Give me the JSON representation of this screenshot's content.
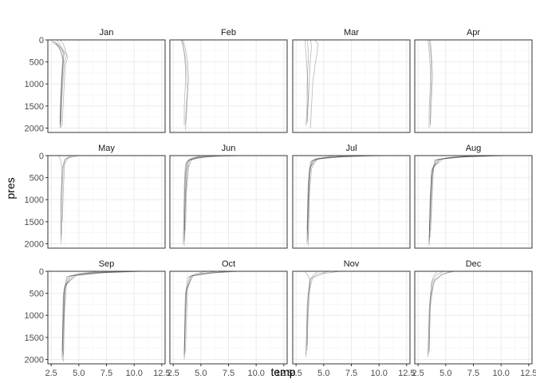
{
  "chart_data": {
    "type": "line",
    "facet": "month",
    "xlabel": "temp",
    "ylabel": "pres",
    "xlim": [
      2.2,
      12.8
    ],
    "ylim": [
      0,
      2100
    ],
    "x_ticks": [
      "2.5",
      "5.0",
      "7.5",
      "10.0",
      "12.5"
    ],
    "y_ticks": [
      "0",
      "500",
      "1000",
      "1500",
      "2000"
    ],
    "y_reversed": true,
    "grid": true,
    "line_color": "#333333",
    "panels": [
      {
        "label": "Jan",
        "profiles": [
          {
            "temp": [
              2.6,
              3.0,
              3.3,
              3.5,
              3.6,
              3.5,
              3.4,
              3.3,
              3.3
            ],
            "pres": [
              50,
              120,
              220,
              320,
              450,
              700,
              1100,
              1600,
              1950
            ]
          },
          {
            "temp": [
              2.7,
              3.1,
              3.5,
              3.9,
              3.7,
              3.6,
              3.5,
              3.4,
              3.4
            ],
            "pres": [
              30,
              100,
              200,
              350,
              500,
              800,
              1200,
              1700,
              2000
            ]
          },
          {
            "temp": [
              3.3,
              3.6,
              3.8,
              4.0,
              3.8,
              3.7,
              3.6,
              3.5
            ],
            "pres": [
              0,
              100,
              250,
              400,
              550,
              900,
              1400,
              1950
            ]
          },
          {
            "temp": [
              2.9,
              3.3,
              3.7,
              3.6,
              3.5,
              3.4,
              3.3
            ],
            "pres": [
              80,
              180,
              300,
              450,
              800,
              1300,
              1900
            ]
          },
          {
            "temp": [
              2.5,
              2.9,
              3.2,
              3.4,
              3.6,
              3.5,
              3.4,
              3.3
            ],
            "pres": [
              20,
              60,
              150,
              300,
              500,
              900,
              1400,
              2000
            ]
          },
          {
            "temp": [
              3.0,
              3.4,
              3.6,
              3.5,
              3.4,
              3.4
            ],
            "pres": [
              0,
              150,
              300,
              600,
              1200,
              1850
            ]
          }
        ]
      },
      {
        "label": "Feb",
        "profiles": [
          {
            "temp": [
              3.3,
              3.4,
              3.5,
              3.6,
              3.6,
              3.5,
              3.5
            ],
            "pres": [
              0,
              100,
              300,
              600,
              1000,
              1500,
              1950
            ]
          },
          {
            "temp": [
              3.2,
              3.4,
              3.6,
              3.7,
              3.8,
              3.7,
              3.6
            ],
            "pres": [
              0,
              150,
              400,
              700,
              1200,
              1700,
              2050
            ]
          },
          {
            "temp": [
              3.4,
              3.6,
              3.8,
              3.9,
              3.7,
              3.6
            ],
            "pres": [
              0,
              200,
              500,
              900,
              1400,
              1900
            ]
          }
        ]
      },
      {
        "label": "Mar",
        "profiles": [
          {
            "temp": [
              3.5,
              3.6,
              3.6,
              3.5,
              3.5,
              3.4
            ],
            "pres": [
              0,
              200,
              500,
              1000,
              1500,
              1950
            ]
          },
          {
            "temp": [
              3.8,
              3.9,
              3.8,
              3.7,
              3.6,
              3.5
            ],
            "pres": [
              0,
              150,
              400,
              900,
              1400,
              1900
            ]
          },
          {
            "temp": [
              4.2,
              4.5,
              4.4,
              4.2,
              4.0,
              3.9,
              3.8
            ],
            "pres": [
              0,
              100,
              300,
              600,
              1000,
              1500,
              2000
            ]
          },
          {
            "temp": [
              3.3,
              3.4,
              3.5,
              3.6,
              3.5
            ],
            "pres": [
              0,
              300,
              700,
              1300,
              1850
            ]
          }
        ]
      },
      {
        "label": "Apr",
        "profiles": [
          {
            "temp": [
              3.5,
              3.6,
              3.7,
              3.7,
              3.6,
              3.6
            ],
            "pres": [
              0,
              200,
              500,
              1000,
              1500,
              1950
            ]
          },
          {
            "temp": [
              3.4,
              3.5,
              3.6,
              3.6,
              3.5,
              3.5
            ],
            "pres": [
              0,
              250,
              600,
              1100,
              1600,
              2000
            ]
          },
          {
            "temp": [
              3.6,
              3.7,
              3.8,
              3.7,
              3.6
            ],
            "pres": [
              0,
              300,
              800,
              1400,
              1900
            ]
          }
        ]
      },
      {
        "label": "May",
        "profiles": [
          {
            "temp": [
              4.5,
              3.8,
              3.6,
              3.5,
              3.5,
              3.4
            ],
            "pres": [
              0,
              80,
              250,
              700,
              1400,
              2000
            ]
          },
          {
            "temp": [
              5.0,
              4.0,
              3.7,
              3.6,
              3.5
            ],
            "pres": [
              0,
              60,
              200,
              800,
              1500
            ]
          },
          {
            "temp": [
              4.2,
              3.7,
              3.5,
              3.4,
              3.4
            ],
            "pres": [
              0,
              100,
              300,
              900,
              1900
            ]
          },
          {
            "temp": [
              3.2,
              3.4,
              3.5,
              3.4,
              3.4
            ],
            "pres": [
              0,
              150,
              400,
              1000,
              1800
            ]
          }
        ]
      },
      {
        "label": "Jun",
        "profiles": [
          {
            "temp": [
              6.0,
              4.5,
              3.8,
              3.6,
              3.5,
              3.4
            ],
            "pres": [
              0,
              50,
              120,
              400,
              1000,
              2000
            ]
          },
          {
            "temp": [
              7.0,
              5.0,
              3.9,
              3.7,
              3.6,
              3.5
            ],
            "pres": [
              0,
              40,
              100,
              350,
              1100,
              1950
            ]
          },
          {
            "temp": [
              5.5,
              4.2,
              3.7,
              3.6,
              3.5
            ],
            "pres": [
              0,
              60,
              150,
              500,
              1900
            ]
          },
          {
            "temp": [
              6.5,
              4.8,
              4.0,
              3.8,
              3.6,
              3.5
            ],
            "pres": [
              0,
              50,
              110,
              300,
              900,
              2050
            ]
          },
          {
            "temp": [
              5.0,
              4.0,
              3.6,
              3.5,
              3.5
            ],
            "pres": [
              0,
              80,
              200,
              700,
              1800
            ]
          },
          {
            "temp": [
              8.5,
              5.5,
              4.2,
              3.9,
              3.7,
              3.6
            ],
            "pres": [
              0,
              30,
              80,
              250,
              800,
              1700
            ]
          }
        ]
      },
      {
        "label": "Jul",
        "profiles": [
          {
            "temp": [
              9.0,
              6.0,
              4.2,
              3.7,
              3.6,
              3.5
            ],
            "pres": [
              0,
              30,
              80,
              300,
              1200,
              2000
            ]
          },
          {
            "temp": [
              10.8,
              7.0,
              4.5,
              3.8,
              3.6,
              3.5
            ],
            "pres": [
              0,
              25,
              70,
              250,
              1000,
              1950
            ]
          },
          {
            "temp": [
              8.0,
              5.5,
              4.0,
              3.7,
              3.6
            ],
            "pres": [
              0,
              40,
              100,
              400,
              1900
            ]
          },
          {
            "temp": [
              7.0,
              5.0,
              3.9,
              3.6,
              3.5
            ],
            "pres": [
              0,
              50,
              120,
              600,
              1800
            ]
          },
          {
            "temp": [
              9.5,
              6.5,
              4.3,
              3.9,
              3.7,
              3.6
            ],
            "pres": [
              0,
              30,
              80,
              300,
              900,
              2050
            ]
          },
          {
            "temp": [
              6.0,
              4.5,
              3.8,
              3.6,
              3.5
            ],
            "pres": [
              0,
              60,
              150,
              700,
              1700
            ]
          }
        ]
      },
      {
        "label": "Aug",
        "profiles": [
          {
            "temp": [
              10.2,
              6.5,
              4.5,
              3.8,
              3.6,
              3.5
            ],
            "pres": [
              0,
              30,
              80,
              300,
              1200,
              2000
            ]
          },
          {
            "temp": [
              9.0,
              6.0,
              4.2,
              3.7,
              3.6,
              3.5
            ],
            "pres": [
              0,
              35,
              90,
              350,
              1000,
              1950
            ]
          },
          {
            "temp": [
              11.0,
              7.0,
              4.8,
              3.9,
              3.6
            ],
            "pres": [
              0,
              25,
              70,
              250,
              1850
            ]
          },
          {
            "temp": [
              8.0,
              5.5,
              4.0,
              3.7,
              3.5
            ],
            "pres": [
              0,
              40,
              100,
              500,
              1900
            ]
          },
          {
            "temp": [
              7.5,
              5.2,
              4.1,
              3.8,
              3.6,
              3.5
            ],
            "pres": [
              0,
              45,
              110,
              400,
              900,
              2050
            ]
          },
          {
            "temp": [
              9.8,
              6.2,
              4.4,
              3.8,
              3.6
            ],
            "pres": [
              0,
              30,
              85,
              300,
              1700
            ]
          }
        ]
      },
      {
        "label": "Sep",
        "profiles": [
          {
            "temp": [
              11.0,
              7.5,
              4.8,
              3.8,
              3.6,
              3.5
            ],
            "pres": [
              0,
              30,
              90,
              300,
              1200,
              2000
            ]
          },
          {
            "temp": [
              10.0,
              6.5,
              4.4,
              3.7,
              3.6,
              3.5
            ],
            "pres": [
              0,
              35,
              100,
              350,
              1000,
              1950
            ]
          },
          {
            "temp": [
              9.0,
              6.0,
              4.2,
              3.7,
              3.6
            ],
            "pres": [
              0,
              40,
              110,
              400,
              1900
            ]
          },
          {
            "temp": [
              8.0,
              5.5,
              4.0,
              3.6,
              3.5
            ],
            "pres": [
              0,
              45,
              120,
              500,
              1850
            ]
          },
          {
            "temp": [
              10.5,
              7.0,
              4.6,
              3.9,
              3.7,
              3.6
            ],
            "pres": [
              0,
              30,
              95,
              300,
              900,
              2050
            ]
          },
          {
            "temp": [
              7.0,
              5.0,
              3.9,
              3.6,
              3.5
            ],
            "pres": [
              0,
              50,
              130,
              600,
              1800
            ]
          }
        ]
      },
      {
        "label": "Oct",
        "profiles": [
          {
            "temp": [
              8.5,
              6.0,
              4.3,
              3.7,
              3.6,
              3.5
            ],
            "pres": [
              0,
              40,
              100,
              400,
              1200,
              2000
            ]
          },
          {
            "temp": [
              7.5,
              5.5,
              4.1,
              3.7,
              3.6,
              3.5
            ],
            "pres": [
              0,
              45,
              110,
              450,
              1000,
              1950
            ]
          },
          {
            "temp": [
              6.5,
              5.0,
              4.0,
              3.6,
              3.5
            ],
            "pres": [
              0,
              50,
              120,
              500,
              1900
            ]
          },
          {
            "temp": [
              8.0,
              5.8,
              4.2,
              3.8,
              3.6
            ],
            "pres": [
              0,
              40,
              105,
              400,
              1850
            ]
          },
          {
            "temp": [
              5.5,
              4.5,
              3.8,
              3.6,
              3.5
            ],
            "pres": [
              0,
              60,
              140,
              600,
              1800
            ]
          }
        ]
      },
      {
        "label": "Nov",
        "profiles": [
          {
            "temp": [
              6.5,
              5.0,
              4.0,
              3.6,
              3.5,
              3.4
            ],
            "pres": [
              0,
              50,
              150,
              500,
              1200,
              1950
            ]
          },
          {
            "temp": [
              5.5,
              4.5,
              3.8,
              3.6,
              3.5
            ],
            "pres": [
              0,
              60,
              170,
              600,
              1800
            ]
          },
          {
            "temp": [
              4.5,
              4.0,
              3.7,
              3.5,
              3.4
            ],
            "pres": [
              0,
              100,
              250,
              800,
              1900
            ]
          },
          {
            "temp": [
              3.3,
              3.6,
              3.8,
              3.6,
              3.5
            ],
            "pres": [
              0,
              100,
              250,
              900,
              1700
            ]
          }
        ]
      },
      {
        "label": "Dec",
        "profiles": [
          {
            "temp": [
              5.5,
              4.8,
              4.0,
              3.6,
              3.5,
              3.4
            ],
            "pres": [
              0,
              60,
              200,
              600,
              1200,
              1950
            ]
          },
          {
            "temp": [
              4.8,
              4.2,
              3.8,
              3.6,
              3.5
            ],
            "pres": [
              0,
              80,
              220,
              700,
              1850
            ]
          },
          {
            "temp": [
              4.2,
              3.9,
              3.7,
              3.5,
              3.4
            ],
            "pres": [
              0,
              120,
              280,
              900,
              1900
            ]
          },
          {
            "temp": [
              5.8,
              4.6,
              3.9,
              3.6,
              3.5
            ],
            "pres": [
              0,
              70,
              250,
              800,
              1800
            ]
          }
        ]
      }
    ]
  }
}
